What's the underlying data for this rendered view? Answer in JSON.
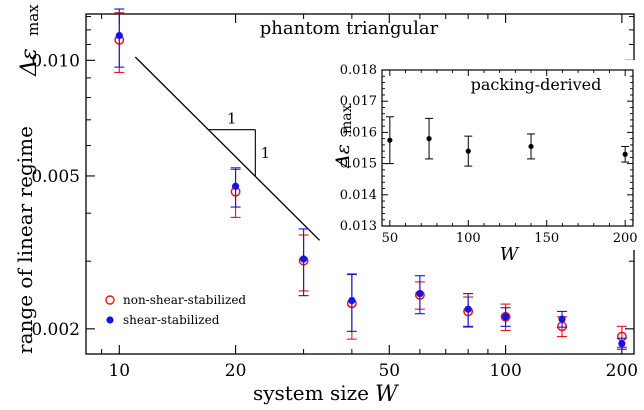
{
  "chart_data": [
    {
      "type": "scatter",
      "title": "phantom triangular",
      "xlabel": "system size",
      "xlabel_symbol": "W",
      "ylabel": "range of linear regime",
      "ylabel_symbol": "Δε",
      "ylabel_subscript": "max",
      "xscale": "log",
      "yscale": "log",
      "xlim": [
        8.2,
        215
      ],
      "ylim": [
        0.00172,
        0.0132
      ],
      "x_ticks": [
        10,
        20,
        50,
        100,
        200
      ],
      "y_ticks": [
        0.002,
        0.005,
        0.01
      ],
      "x_tick_labels": [
        "10",
        "20",
        "50",
        "100",
        "200"
      ],
      "y_tick_labels": [
        "0.002",
        "0.005",
        "0.010"
      ],
      "legend_position": "bottom-left",
      "series": [
        {
          "name": "non-shear-stabilized",
          "marker": "open-circle",
          "color": "#e8141e",
          "x": [
            10,
            20,
            30,
            40,
            60,
            80,
            100,
            140,
            200
          ],
          "y": [
            0.0113,
            0.00455,
            0.00301,
            0.00233,
            0.00245,
            0.00222,
            0.00215,
            0.00203,
            0.00191
          ],
          "err": [
            0.002,
            0.00065,
            0.0005,
            0.00045,
            0.0002,
            0.0002,
            0.00017,
            0.00012,
            0.00012
          ]
        },
        {
          "name": "shear-stabilized",
          "marker": "filled-circle",
          "color": "#1414e6",
          "x": [
            10,
            20,
            30,
            40,
            60,
            80,
            100,
            140,
            200
          ],
          "y": [
            0.0116,
            0.0047,
            0.00304,
            0.00237,
            0.00247,
            0.00225,
            0.00215,
            0.00212,
            0.00183
          ],
          "err": [
            0.002,
            0.00055,
            0.0006,
            0.0004,
            0.00028,
            0.00022,
            0.00012,
            0.0001,
            6e-05
          ]
        }
      ],
      "guide_line": {
        "slope": -1,
        "x": [
          11,
          33
        ],
        "y": [
          0.0102,
          0.0034
        ]
      },
      "slope_triangle_labels": [
        "1",
        "1"
      ]
    },
    {
      "type": "scatter",
      "title": "packing-derived",
      "xlabel": "",
      "xlabel_symbol": "W",
      "ylabel": "",
      "ylabel_symbol": "Δε",
      "ylabel_subscript": "max",
      "xlim": [
        45,
        205
      ],
      "ylim": [
        0.013,
        0.018
      ],
      "x_ticks": [
        50,
        100,
        150,
        200
      ],
      "y_ticks": [
        0.013,
        0.014,
        0.015,
        0.016,
        0.017,
        0.018
      ],
      "x_tick_labels": [
        "50",
        "100",
        "150",
        "200"
      ],
      "y_tick_labels": [
        "0.013",
        "0.014",
        "0.015",
        "0.016",
        "0.017",
        "0.018"
      ],
      "series": [
        {
          "marker": "filled-circle",
          "color": "#000000",
          "x": [
            50,
            75,
            100,
            140,
            200
          ],
          "y": [
            0.01575,
            0.0158,
            0.0154,
            0.01555,
            0.0153
          ],
          "err": [
            0.00075,
            0.00065,
            0.00048,
            0.0004,
            0.00025
          ]
        }
      ]
    }
  ]
}
